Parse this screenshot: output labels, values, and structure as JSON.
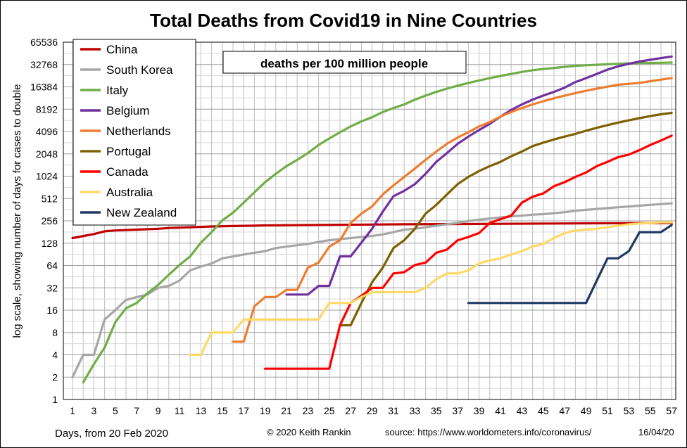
{
  "chart_data": {
    "type": "line",
    "title": "Total Deaths from Covid19 in Nine Countries",
    "annotation": "deaths per 100 million  people",
    "ylabel": "log scale, showing number of days for cases to double",
    "xlabel": "Days, from 20 Feb 2020",
    "y_scale": "log2",
    "ylim": [
      1,
      65536
    ],
    "xlim": [
      1,
      57
    ],
    "grid": true,
    "legend_placement": "top-left",
    "x_ticks": [
      1,
      3,
      5,
      7,
      9,
      11,
      13,
      15,
      17,
      19,
      21,
      23,
      25,
      27,
      29,
      31,
      33,
      35,
      37,
      39,
      41,
      43,
      45,
      47,
      49,
      51,
      53,
      55,
      57
    ],
    "y_ticks": [
      1,
      2,
      4,
      8,
      16,
      32,
      64,
      128,
      256,
      512,
      1024,
      2048,
      4096,
      8192,
      16384,
      32768,
      65536
    ],
    "footer": {
      "copyright": "© 2020  Keith  Rankin",
      "source": "source:  https://www.worldometers.info/coronavirus/",
      "date": "16/04/20"
    },
    "series": [
      {
        "name": "China",
        "color": "#c00000",
        "x": [
          1,
          3,
          4,
          5,
          7,
          9,
          10,
          12,
          14,
          16,
          18,
          19,
          24,
          32,
          57
        ],
        "values": [
          150,
          170,
          185,
          190,
          195,
          200,
          205,
          210,
          215,
          218,
          220,
          222,
          225,
          230,
          240
        ]
      },
      {
        "name": "South Korea",
        "color": "#a6a6a6",
        "x": [
          1,
          2,
          3,
          4,
          5,
          6,
          7,
          8,
          9,
          10,
          11,
          12,
          13,
          14,
          15,
          17,
          18,
          19,
          20,
          21,
          22,
          23,
          24,
          25,
          26,
          27,
          28,
          29,
          30,
          31,
          32,
          33,
          34,
          35,
          36,
          37,
          38,
          39,
          40,
          41,
          42,
          43,
          44,
          45,
          46,
          47,
          48,
          49,
          50,
          51,
          52,
          53,
          54,
          55,
          56,
          57
        ],
        "values": [
          2,
          4,
          4,
          12,
          16,
          22,
          24,
          26,
          32,
          34,
          40,
          55,
          62,
          68,
          80,
          90,
          95,
          100,
          110,
          115,
          120,
          125,
          133,
          140,
          145,
          150,
          155,
          160,
          168,
          180,
          195,
          200,
          210,
          220,
          230,
          240,
          255,
          265,
          275,
          285,
          295,
          300,
          310,
          315,
          325,
          335,
          350,
          360,
          370,
          380,
          390,
          400,
          410,
          420,
          430,
          440
        ]
      },
      {
        "name": "Italy",
        "color": "#70ad47",
        "x": [
          2,
          3,
          4,
          5,
          6,
          7,
          8,
          9,
          10,
          11,
          12,
          13,
          14,
          15,
          16,
          17,
          18,
          19,
          20,
          21,
          22,
          23,
          24,
          25,
          26,
          27,
          28,
          29,
          30,
          31,
          32,
          33,
          34,
          35,
          36,
          37,
          38,
          39,
          40,
          41,
          42,
          43,
          44,
          45,
          46,
          47,
          48,
          49,
          50,
          51,
          52,
          53,
          54,
          55,
          56,
          57
        ],
        "values": [
          1.7,
          3,
          5,
          11,
          17,
          20,
          27,
          35,
          48,
          65,
          85,
          130,
          180,
          260,
          330,
          450,
          620,
          850,
          1100,
          1400,
          1700,
          2100,
          2700,
          3300,
          4000,
          4800,
          5600,
          6400,
          7500,
          8500,
          9500,
          11000,
          12500,
          14000,
          15500,
          17000,
          18500,
          20000,
          21500,
          23000,
          24500,
          26000,
          27500,
          28500,
          29500,
          30500,
          31500,
          32000,
          32500,
          33000,
          33500,
          34000,
          34200,
          34400,
          34600,
          34800
        ]
      },
      {
        "name": "Belgium",
        "color": "#7030a0",
        "x": [
          21,
          23,
          24,
          25,
          26,
          27,
          28,
          29,
          30,
          31,
          32,
          33,
          34,
          35,
          36,
          37,
          38,
          39,
          40,
          41,
          42,
          43,
          44,
          45,
          46,
          47,
          48,
          49,
          50,
          51,
          52,
          53,
          54,
          55,
          56,
          57
        ],
        "values": [
          26,
          26,
          34,
          34,
          85,
          85,
          130,
          200,
          340,
          550,
          650,
          800,
          1100,
          1600,
          2100,
          2800,
          3500,
          4300,
          5200,
          6500,
          8000,
          9500,
          11000,
          12500,
          14000,
          16000,
          19000,
          21500,
          24500,
          28000,
          31000,
          33500,
          36000,
          38000,
          40000,
          42000
        ]
      },
      {
        "name": "Netherlands",
        "color": "#ed7d31",
        "x": [
          16,
          17,
          18,
          19,
          20,
          21,
          22,
          23,
          24,
          25,
          26,
          27,
          28,
          29,
          30,
          31,
          32,
          33,
          34,
          35,
          36,
          37,
          38,
          39,
          40,
          41,
          42,
          43,
          44,
          45,
          46,
          47,
          48,
          49,
          50,
          51,
          52,
          53,
          54,
          55,
          56,
          57
        ],
        "values": [
          6,
          6,
          18,
          24,
          24,
          30,
          30,
          60,
          70,
          115,
          140,
          240,
          320,
          400,
          580,
          770,
          1000,
          1300,
          1700,
          2200,
          2800,
          3400,
          4000,
          4800,
          5500,
          6500,
          7500,
          8500,
          9500,
          10500,
          11500,
          12500,
          13500,
          14500,
          15500,
          16500,
          17500,
          18000,
          18500,
          19500,
          20500,
          21500
        ]
      },
      {
        "name": "Portugal",
        "color": "#7f6000",
        "x": [
          26,
          27,
          28,
          29,
          30,
          31,
          32,
          33,
          34,
          35,
          36,
          37,
          38,
          39,
          40,
          41,
          42,
          43,
          44,
          45,
          46,
          47,
          48,
          49,
          50,
          51,
          52,
          53,
          54,
          55,
          56,
          57
        ],
        "values": [
          10,
          10,
          20,
          38,
          60,
          110,
          140,
          200,
          320,
          420,
          580,
          800,
          1000,
          1200,
          1400,
          1600,
          1900,
          2200,
          2600,
          2900,
          3200,
          3500,
          3800,
          4200,
          4600,
          5000,
          5400,
          5800,
          6200,
          6600,
          7000,
          7300
        ]
      },
      {
        "name": "Canada",
        "color": "#ff0000",
        "x": [
          19,
          20,
          21,
          22,
          23,
          24,
          25,
          26,
          27,
          28,
          29,
          30,
          31,
          32,
          33,
          34,
          35,
          36,
          37,
          38,
          39,
          40,
          41,
          42,
          43,
          44,
          45,
          46,
          47,
          48,
          49,
          50,
          51,
          52,
          53,
          54,
          55,
          56,
          57
        ],
        "values": [
          2.6,
          2.6,
          2.6,
          2.6,
          2.6,
          2.6,
          2.6,
          10,
          20,
          25,
          32,
          32,
          50,
          52,
          65,
          70,
          95,
          105,
          140,
          155,
          175,
          240,
          270,
          300,
          450,
          540,
          600,
          750,
          850,
          1000,
          1150,
          1400,
          1600,
          1850,
          2000,
          2300,
          2700,
          3100,
          3600
        ]
      },
      {
        "name": "Australia",
        "color": "#ffd966",
        "x": [
          12,
          13,
          14,
          15,
          16,
          17,
          18,
          19,
          20,
          21,
          22,
          23,
          24,
          25,
          26,
          27,
          28,
          29,
          30,
          31,
          32,
          33,
          34,
          35,
          36,
          37,
          38,
          39,
          40,
          41,
          42,
          43,
          44,
          45,
          46,
          47,
          48,
          49,
          50,
          51,
          52,
          53,
          54,
          55,
          56,
          57
        ],
        "values": [
          4,
          4,
          8,
          8,
          8,
          12,
          12,
          12,
          12,
          12,
          12,
          12,
          12,
          20,
          20,
          20,
          24,
          28,
          28,
          28,
          28,
          28,
          32,
          42,
          50,
          50,
          55,
          68,
          75,
          80,
          90,
          100,
          115,
          125,
          150,
          175,
          190,
          195,
          200,
          210,
          220,
          230,
          235,
          240,
          245,
          245
        ]
      },
      {
        "name": "New Zealand",
        "color": "#1f3864",
        "x": [
          38,
          49,
          51,
          52,
          53,
          54,
          55,
          56,
          57
        ],
        "values": [
          20,
          20,
          80,
          80,
          100,
          180,
          180,
          180,
          225
        ]
      }
    ]
  }
}
